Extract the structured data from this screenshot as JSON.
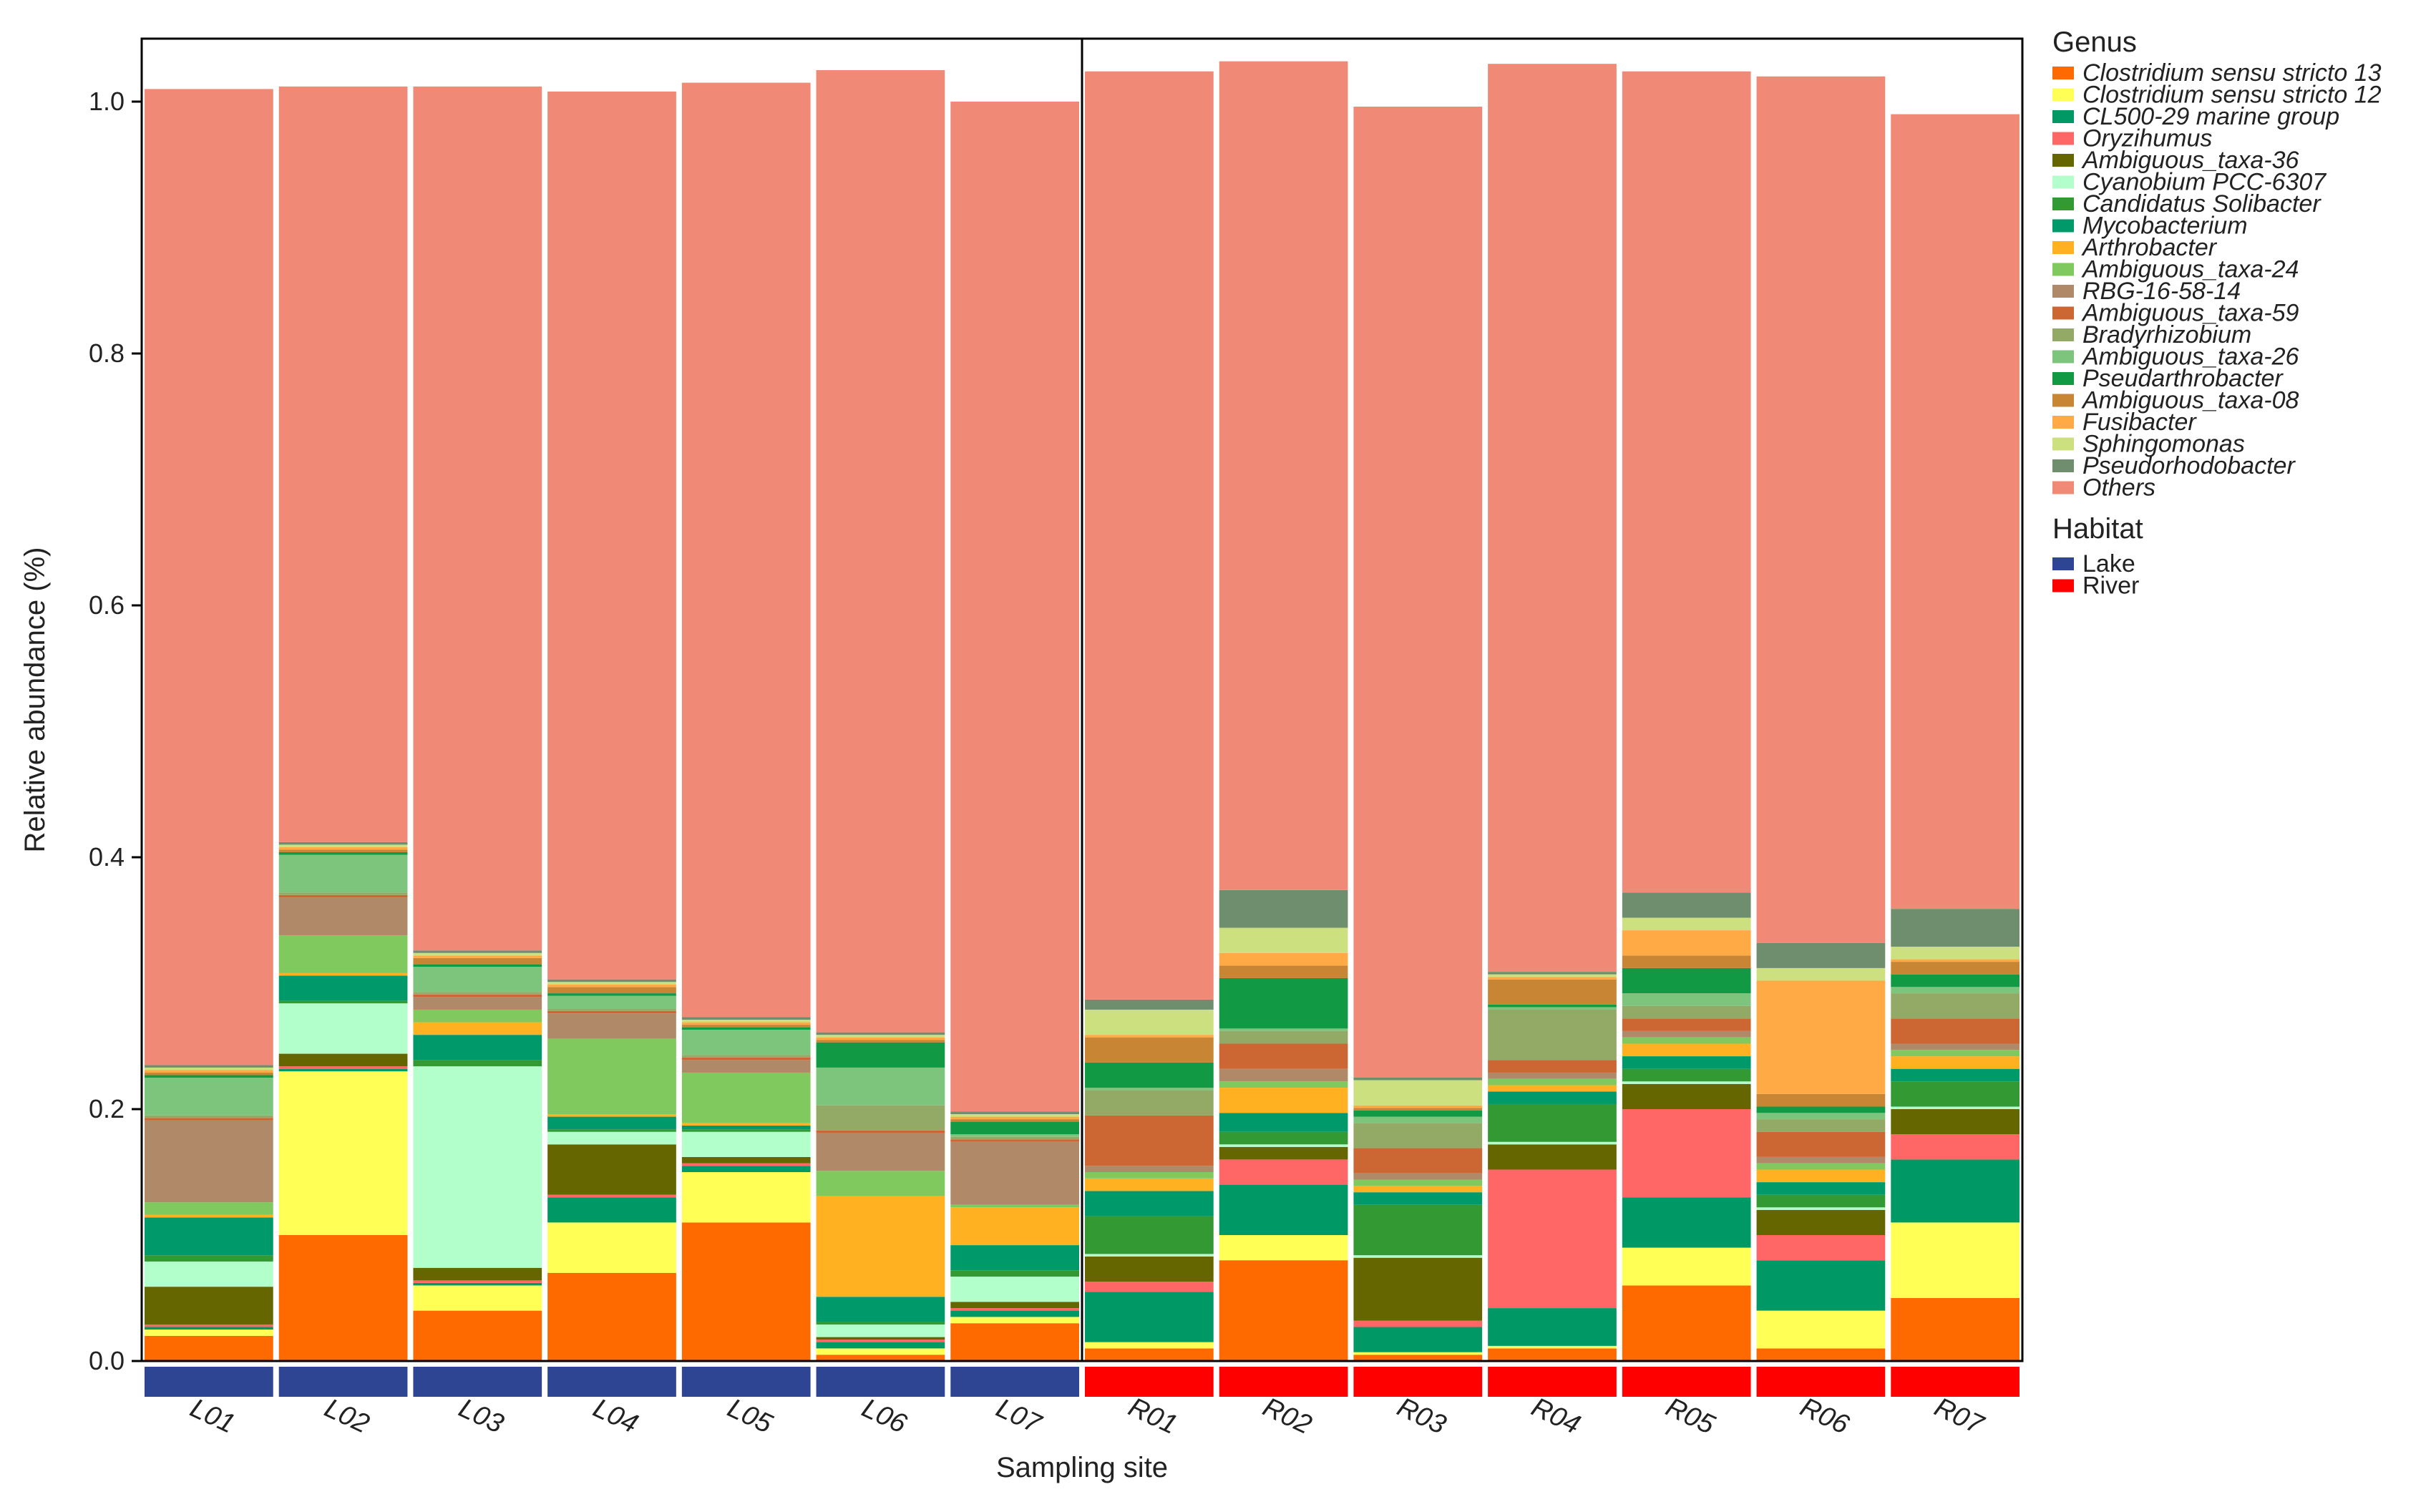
{
  "chart_data": {
    "type": "bar",
    "stacked": true,
    "ylabel": "Relative abundance (%)",
    "xlabel": "Sampling site",
    "ylim": [
      0,
      1.05
    ],
    "y_ticks": [
      "0.0",
      "0.2",
      "0.4",
      "0.6",
      "0.8",
      "1.0"
    ],
    "y_tick_values": [
      0,
      0.2,
      0.4,
      0.6,
      0.8,
      1.0
    ],
    "grid": false,
    "legend_position": "right",
    "categories": [
      "L01",
      "L02",
      "L03",
      "L04",
      "L05",
      "L06",
      "L07",
      "R01",
      "R02",
      "R03",
      "R04",
      "R05",
      "R06",
      "R07"
    ],
    "habitat_by_site": [
      "Lake",
      "Lake",
      "Lake",
      "Lake",
      "Lake",
      "Lake",
      "Lake",
      "River",
      "River",
      "River",
      "River",
      "River",
      "River",
      "River"
    ],
    "legend": {
      "genus_title": "Genus",
      "habitat_title": "Habitat",
      "habitats": [
        {
          "name": "Lake",
          "color": "#2E4593"
        },
        {
          "name": "River",
          "color": "#FF0000"
        }
      ]
    },
    "series": [
      {
        "name": "Clostridium sensu stricto 13",
        "color": "#FF6A00",
        "values": [
          0.02,
          0.1,
          0.04,
          0.07,
          0.11,
          0.005,
          0.03,
          0.01,
          0.08,
          0.005,
          0.01,
          0.06,
          0.01,
          0.05
        ]
      },
      {
        "name": "Clostridium sensu stricto 12",
        "color": "#FFFF55",
        "values": [
          0.005,
          0.13,
          0.02,
          0.04,
          0.04,
          0.005,
          0.005,
          0.005,
          0.02,
          0.002,
          0.002,
          0.03,
          0.03,
          0.06
        ]
      },
      {
        "name": "CL500-29 marine group",
        "color": "#009966",
        "values": [
          0.002,
          0.002,
          0.002,
          0.02,
          0.005,
          0.005,
          0.005,
          0.04,
          0.04,
          0.02,
          0.03,
          0.04,
          0.04,
          0.05
        ]
      },
      {
        "name": "Oryzihumus",
        "color": "#FF6666",
        "values": [
          0.002,
          0.002,
          0.002,
          0.002,
          0.002,
          0.002,
          0.002,
          0.008,
          0.02,
          0.005,
          0.11,
          0.07,
          0.02,
          0.02
        ]
      },
      {
        "name": "Ambiguous_taxa-36",
        "color": "#666600",
        "values": [
          0.03,
          0.01,
          0.01,
          0.04,
          0.005,
          0.002,
          0.005,
          0.02,
          0.01,
          0.05,
          0.02,
          0.02,
          0.02,
          0.02
        ]
      },
      {
        "name": "Cyanobium PCC-6307",
        "color": "#B3FFCC",
        "values": [
          0.02,
          0.04,
          0.16,
          0.01,
          0.02,
          0.01,
          0.02,
          0.002,
          0.002,
          0.002,
          0.002,
          0.002,
          0.002,
          0.002
        ]
      },
      {
        "name": "Candidatus Solibacter",
        "color": "#339933",
        "values": [
          0.005,
          0.002,
          0.005,
          0.002,
          0.002,
          0.002,
          0.005,
          0.03,
          0.01,
          0.04,
          0.03,
          0.01,
          0.01,
          0.02
        ]
      },
      {
        "name": "Mycobacterium",
        "color": "#00996A",
        "values": [
          0.03,
          0.02,
          0.02,
          0.01,
          0.003,
          0.02,
          0.02,
          0.02,
          0.015,
          0.01,
          0.01,
          0.01,
          0.01,
          0.01
        ]
      },
      {
        "name": "Arthrobacter",
        "color": "#FFB122",
        "values": [
          0.002,
          0.002,
          0.01,
          0.002,
          0.002,
          0.08,
          0.03,
          0.01,
          0.02,
          0.005,
          0.005,
          0.01,
          0.01,
          0.01
        ]
      },
      {
        "name": "Ambiguous_taxa-24",
        "color": "#7FC95F",
        "values": [
          0.01,
          0.03,
          0.01,
          0.06,
          0.04,
          0.02,
          0.002,
          0.005,
          0.005,
          0.005,
          0.005,
          0.005,
          0.005,
          0.005
        ]
      },
      {
        "name": "RBG-16-58-14",
        "color": "#B08A68",
        "values": [
          0.065,
          0.03,
          0.01,
          0.02,
          0.01,
          0.03,
          0.05,
          0.005,
          0.01,
          0.005,
          0.005,
          0.005,
          0.005,
          0.005
        ]
      },
      {
        "name": "Ambiguous_taxa-59",
        "color": "#CC6633",
        "values": [
          0.002,
          0.002,
          0.002,
          0.002,
          0.002,
          0.002,
          0.002,
          0.04,
          0.02,
          0.02,
          0.01,
          0.01,
          0.02,
          0.02
        ]
      },
      {
        "name": "Bradyrhizobium",
        "color": "#93AA66",
        "values": [
          0.002,
          0.002,
          0.002,
          0.002,
          0.002,
          0.02,
          0.002,
          0.02,
          0.01,
          0.02,
          0.04,
          0.01,
          0.01,
          0.02
        ]
      },
      {
        "name": "Ambiguous_taxa-26",
        "color": "#7DC47D",
        "values": [
          0.03,
          0.03,
          0.02,
          0.01,
          0.02,
          0.03,
          0.002,
          0.002,
          0.002,
          0.005,
          0.002,
          0.01,
          0.005,
          0.005
        ]
      },
      {
        "name": "Pseudarthrobacter",
        "color": "#119944",
        "values": [
          0.002,
          0.002,
          0.002,
          0.002,
          0.002,
          0.02,
          0.01,
          0.02,
          0.04,
          0.005,
          0.002,
          0.02,
          0.005,
          0.01
        ]
      },
      {
        "name": "Ambiguous_taxa-08",
        "color": "#C88533",
        "values": [
          0.002,
          0.002,
          0.005,
          0.005,
          0.002,
          0.002,
          0.002,
          0.02,
          0.01,
          0.002,
          0.02,
          0.01,
          0.01,
          0.01
        ]
      },
      {
        "name": "Fusibacter",
        "color": "#FFAA44",
        "values": [
          0.002,
          0.002,
          0.002,
          0.002,
          0.002,
          0.002,
          0.002,
          0.002,
          0.01,
          0.002,
          0.002,
          0.02,
          0.09,
          0.002
        ]
      },
      {
        "name": "Sphingomonas",
        "color": "#CCE080",
        "values": [
          0.002,
          0.002,
          0.002,
          0.002,
          0.002,
          0.002,
          0.002,
          0.02,
          0.02,
          0.02,
          0.002,
          0.01,
          0.01,
          0.01
        ]
      },
      {
        "name": "Pseudorhodobacter",
        "color": "#6E8E6E",
        "values": [
          0.002,
          0.002,
          0.002,
          0.002,
          0.002,
          0.002,
          0.002,
          0.008,
          0.03,
          0.002,
          0.002,
          0.02,
          0.02,
          0.03
        ]
      },
      {
        "name": "Others",
        "color": "#F08A76",
        "values": [
          0.775,
          0.6,
          0.686,
          0.705,
          0.742,
          0.764,
          0.802,
          0.737,
          0.658,
          0.771,
          0.721,
          0.652,
          0.688,
          0.631
        ]
      }
    ]
  }
}
